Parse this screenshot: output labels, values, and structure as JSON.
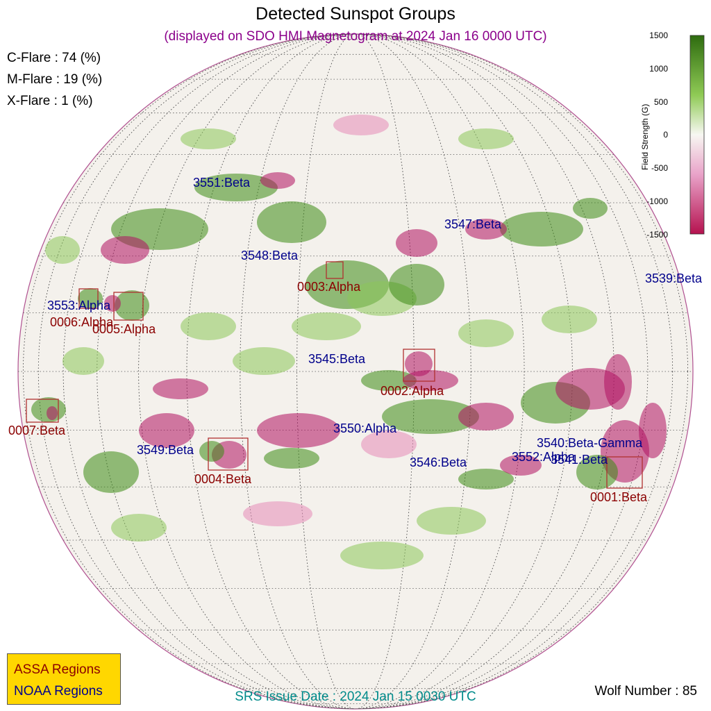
{
  "header": {
    "title": "Detected Sunspot Groups",
    "subtitle": "(displayed on SDO HMI Magnetogram at 2024 Jan 16 0000 UTC)"
  },
  "flare_probabilities": [
    {
      "label": "C-Flare : 74 (%)"
    },
    {
      "label": "M-Flare : 19 (%)"
    },
    {
      "label": "X-Flare :  1 (%)"
    }
  ],
  "colorbar": {
    "title": "Field Strength (G)",
    "ticks": [
      "1500",
      "1000",
      "500",
      "0",
      "-500",
      "-1000",
      "-1500"
    ],
    "positive_color": "#2e7d12",
    "negative_color": "#c2185b"
  },
  "noaa_regions": [
    {
      "label": "3551:Beta"
    },
    {
      "label": "3547:Beta"
    },
    {
      "label": "3548:Beta"
    },
    {
      "label": "3539:Beta"
    },
    {
      "label": "3553:Alpha"
    },
    {
      "label": "3545:Beta"
    },
    {
      "label": "3550:Alpha"
    },
    {
      "label": "3549:Beta"
    },
    {
      "label": "3546:Beta"
    },
    {
      "label": "3540:Beta-Gamma"
    },
    {
      "label": "3552:Alpha"
    },
    {
      "label": "3541:Beta"
    }
  ],
  "assa_regions": [
    {
      "label": "0003:Alpha"
    },
    {
      "label": "0006:Alpha"
    },
    {
      "label": "0005:Alpha"
    },
    {
      "label": "0002:Alpha"
    },
    {
      "label": "0007:Beta"
    },
    {
      "label": "0004:Beta"
    },
    {
      "label": "0001:Beta"
    }
  ],
  "legend": {
    "assa_label": "ASSA Regions",
    "noaa_label": "NOAA Regions",
    "assa_color": "#8b0000",
    "noaa_color": "#00008b",
    "background": "#ffd700"
  },
  "footer": {
    "srs_issue": "SRS Issue Date : 2024 Jan 15 0030 UTC",
    "wolf_number": "Wolf Number : 85"
  }
}
